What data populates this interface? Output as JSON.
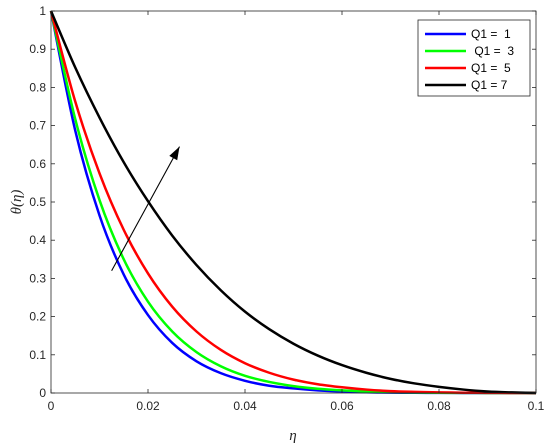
{
  "chart_data": {
    "type": "line",
    "title": "",
    "xlabel": "η",
    "ylabel": "θ(η)",
    "xlim": [
      0,
      0.1
    ],
    "ylim": [
      0,
      1
    ],
    "x_ticks": [
      "0",
      "0.02",
      "0.04",
      "0.06",
      "0.08",
      "0.1"
    ],
    "y_ticks": [
      "0",
      "0.1",
      "0.2",
      "0.3",
      "0.4",
      "0.5",
      "0.6",
      "0.7",
      "0.8",
      "0.9",
      "1"
    ],
    "grid": false,
    "legend_position": "top-right",
    "x": [
      0,
      0.005,
      0.01,
      0.015,
      0.02,
      0.025,
      0.03,
      0.035,
      0.04,
      0.045,
      0.05,
      0.055,
      0.06,
      0.065,
      0.07,
      0.075,
      0.08,
      0.085,
      0.09,
      0.095,
      0.1
    ],
    "series": [
      {
        "name": "Q1 =  1",
        "color": "#0000ff",
        "values": [
          1.0,
          0.687,
          0.465,
          0.31,
          0.204,
          0.131,
          0.083,
          0.052,
          0.032,
          0.019,
          0.012,
          0.007,
          0.004,
          0.002,
          0.001,
          0.0006,
          0.0003,
          0.0001,
          5e-05,
          2e-05,
          0.0
        ]
      },
      {
        "name": " Q1 =  3",
        "color": "#00ff00",
        "values": [
          1.0,
          0.717,
          0.505,
          0.35,
          0.239,
          0.161,
          0.107,
          0.07,
          0.045,
          0.029,
          0.018,
          0.011,
          0.007,
          0.004,
          0.002,
          0.0012,
          0.0006,
          0.0003,
          0.0001,
          3e-05,
          0.0
        ]
      },
      {
        "name": "Q1 =  5",
        "color": "#ff0000",
        "values": [
          1.0,
          0.763,
          0.575,
          0.427,
          0.313,
          0.226,
          0.161,
          0.113,
          0.078,
          0.053,
          0.035,
          0.023,
          0.015,
          0.009,
          0.005,
          0.003,
          0.0016,
          0.0008,
          0.0003,
          0.0001,
          0.0
        ]
      },
      {
        "name": "Q1 = 7",
        "color": "#000000",
        "values": [
          1.0,
          0.852,
          0.721,
          0.604,
          0.502,
          0.412,
          0.335,
          0.269,
          0.213,
          0.167,
          0.129,
          0.098,
          0.073,
          0.053,
          0.037,
          0.025,
          0.016,
          0.009,
          0.004,
          0.0015,
          0.0
        ]
      }
    ],
    "annotations": [
      {
        "type": "arrow",
        "from": [
          0.0125,
          0.32
        ],
        "to": [
          0.0265,
          0.645
        ],
        "color": "#000000"
      }
    ]
  }
}
